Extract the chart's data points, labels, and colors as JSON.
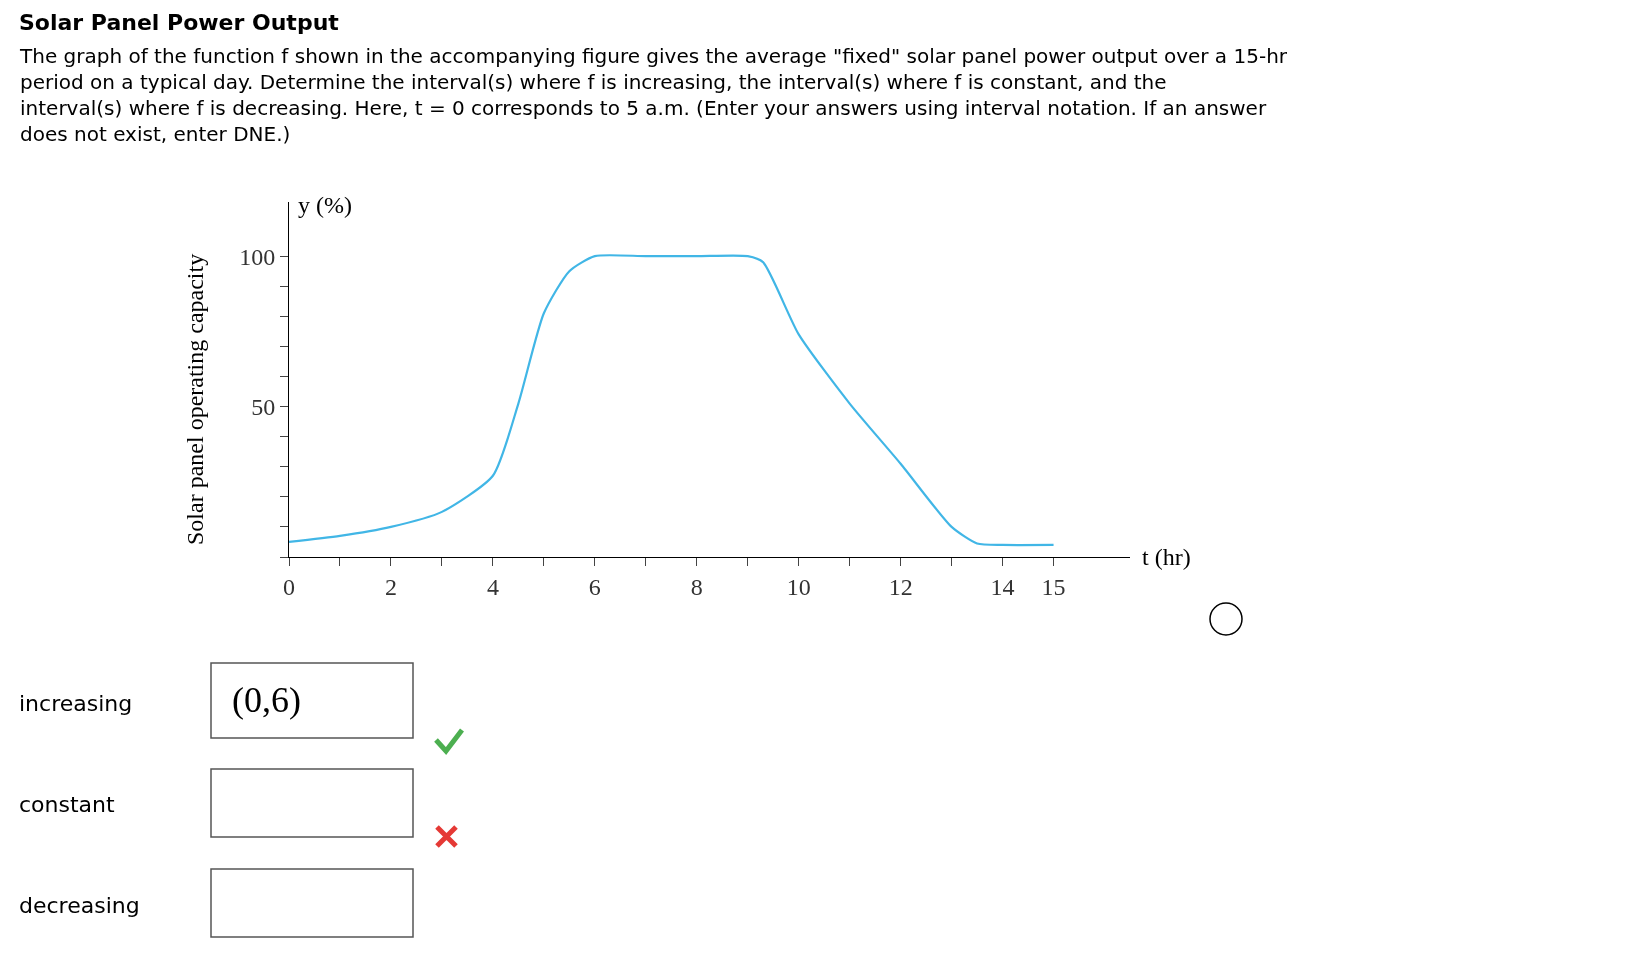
{
  "chart_data": {
    "type": "line",
    "title": "Solar Panel Power Output",
    "subtitle": "The graph of the function f shown in the accompanying figure gives the average \"fixed\" solar panel power output over a 15-hr period on a typical day. Determine the interval(s) where f is increasing, the interval(s) where f is constant, and the interval(s) where f is decreasing. Here, t = 0 corresponds to 5 a.m. (Enter your answers using interval notation. If an answer does not exist, enter DNE.)",
    "xlabel": "t (hr)",
    "ylabel": "y (%)",
    "annotations": [
      "Solar panel operating capacity",
      "increasing",
      "(0,6)",
      "constant",
      "decreasing"
    ],
    "x": [
      0,
      1,
      2,
      3,
      4,
      4.5,
      5,
      5.5,
      6,
      7,
      8,
      9,
      9.3,
      10,
      11,
      12,
      13,
      13.5,
      14,
      15
    ],
    "series": [
      {
        "color": "#41b6e6",
        "values": [
          5,
          7,
          10,
          15,
          27,
          51,
          81,
          95,
          100,
          100,
          100,
          100,
          98,
          74,
          51,
          31,
          10,
          4.5,
          4,
          4
        ]
      }
    ],
    "xlim": [
      0,
      16.5
    ],
    "ylim": [
      0,
      118
    ],
    "xticks": [
      0,
      {
        "value": 1,
        "label": null
      },
      2,
      {
        "value": 3,
        "label": null
      },
      4,
      {
        "value": 5,
        "label": null
      },
      6,
      {
        "value": 7,
        "label": null
      },
      8,
      {
        "value": 9,
        "label": null
      },
      10,
      {
        "value": 11,
        "label": null
      },
      12,
      {
        "value": 13,
        "label": null
      },
      14,
      15
    ],
    "yticks": [
      {
        "value": 0,
        "label": null
      },
      {
        "value": 10,
        "label": null
      },
      {
        "value": 20,
        "label": null
      },
      {
        "value": 30,
        "label": null
      },
      {
        "value": 40,
        "label": null
      },
      50,
      {
        "value": 60,
        "label": null
      },
      {
        "value": 70,
        "label": null
      },
      {
        "value": 80,
        "label": null
      },
      {
        "value": 90,
        "label": null
      },
      100
    ],
    "marker": "none",
    "line_style": "solid"
  }
}
